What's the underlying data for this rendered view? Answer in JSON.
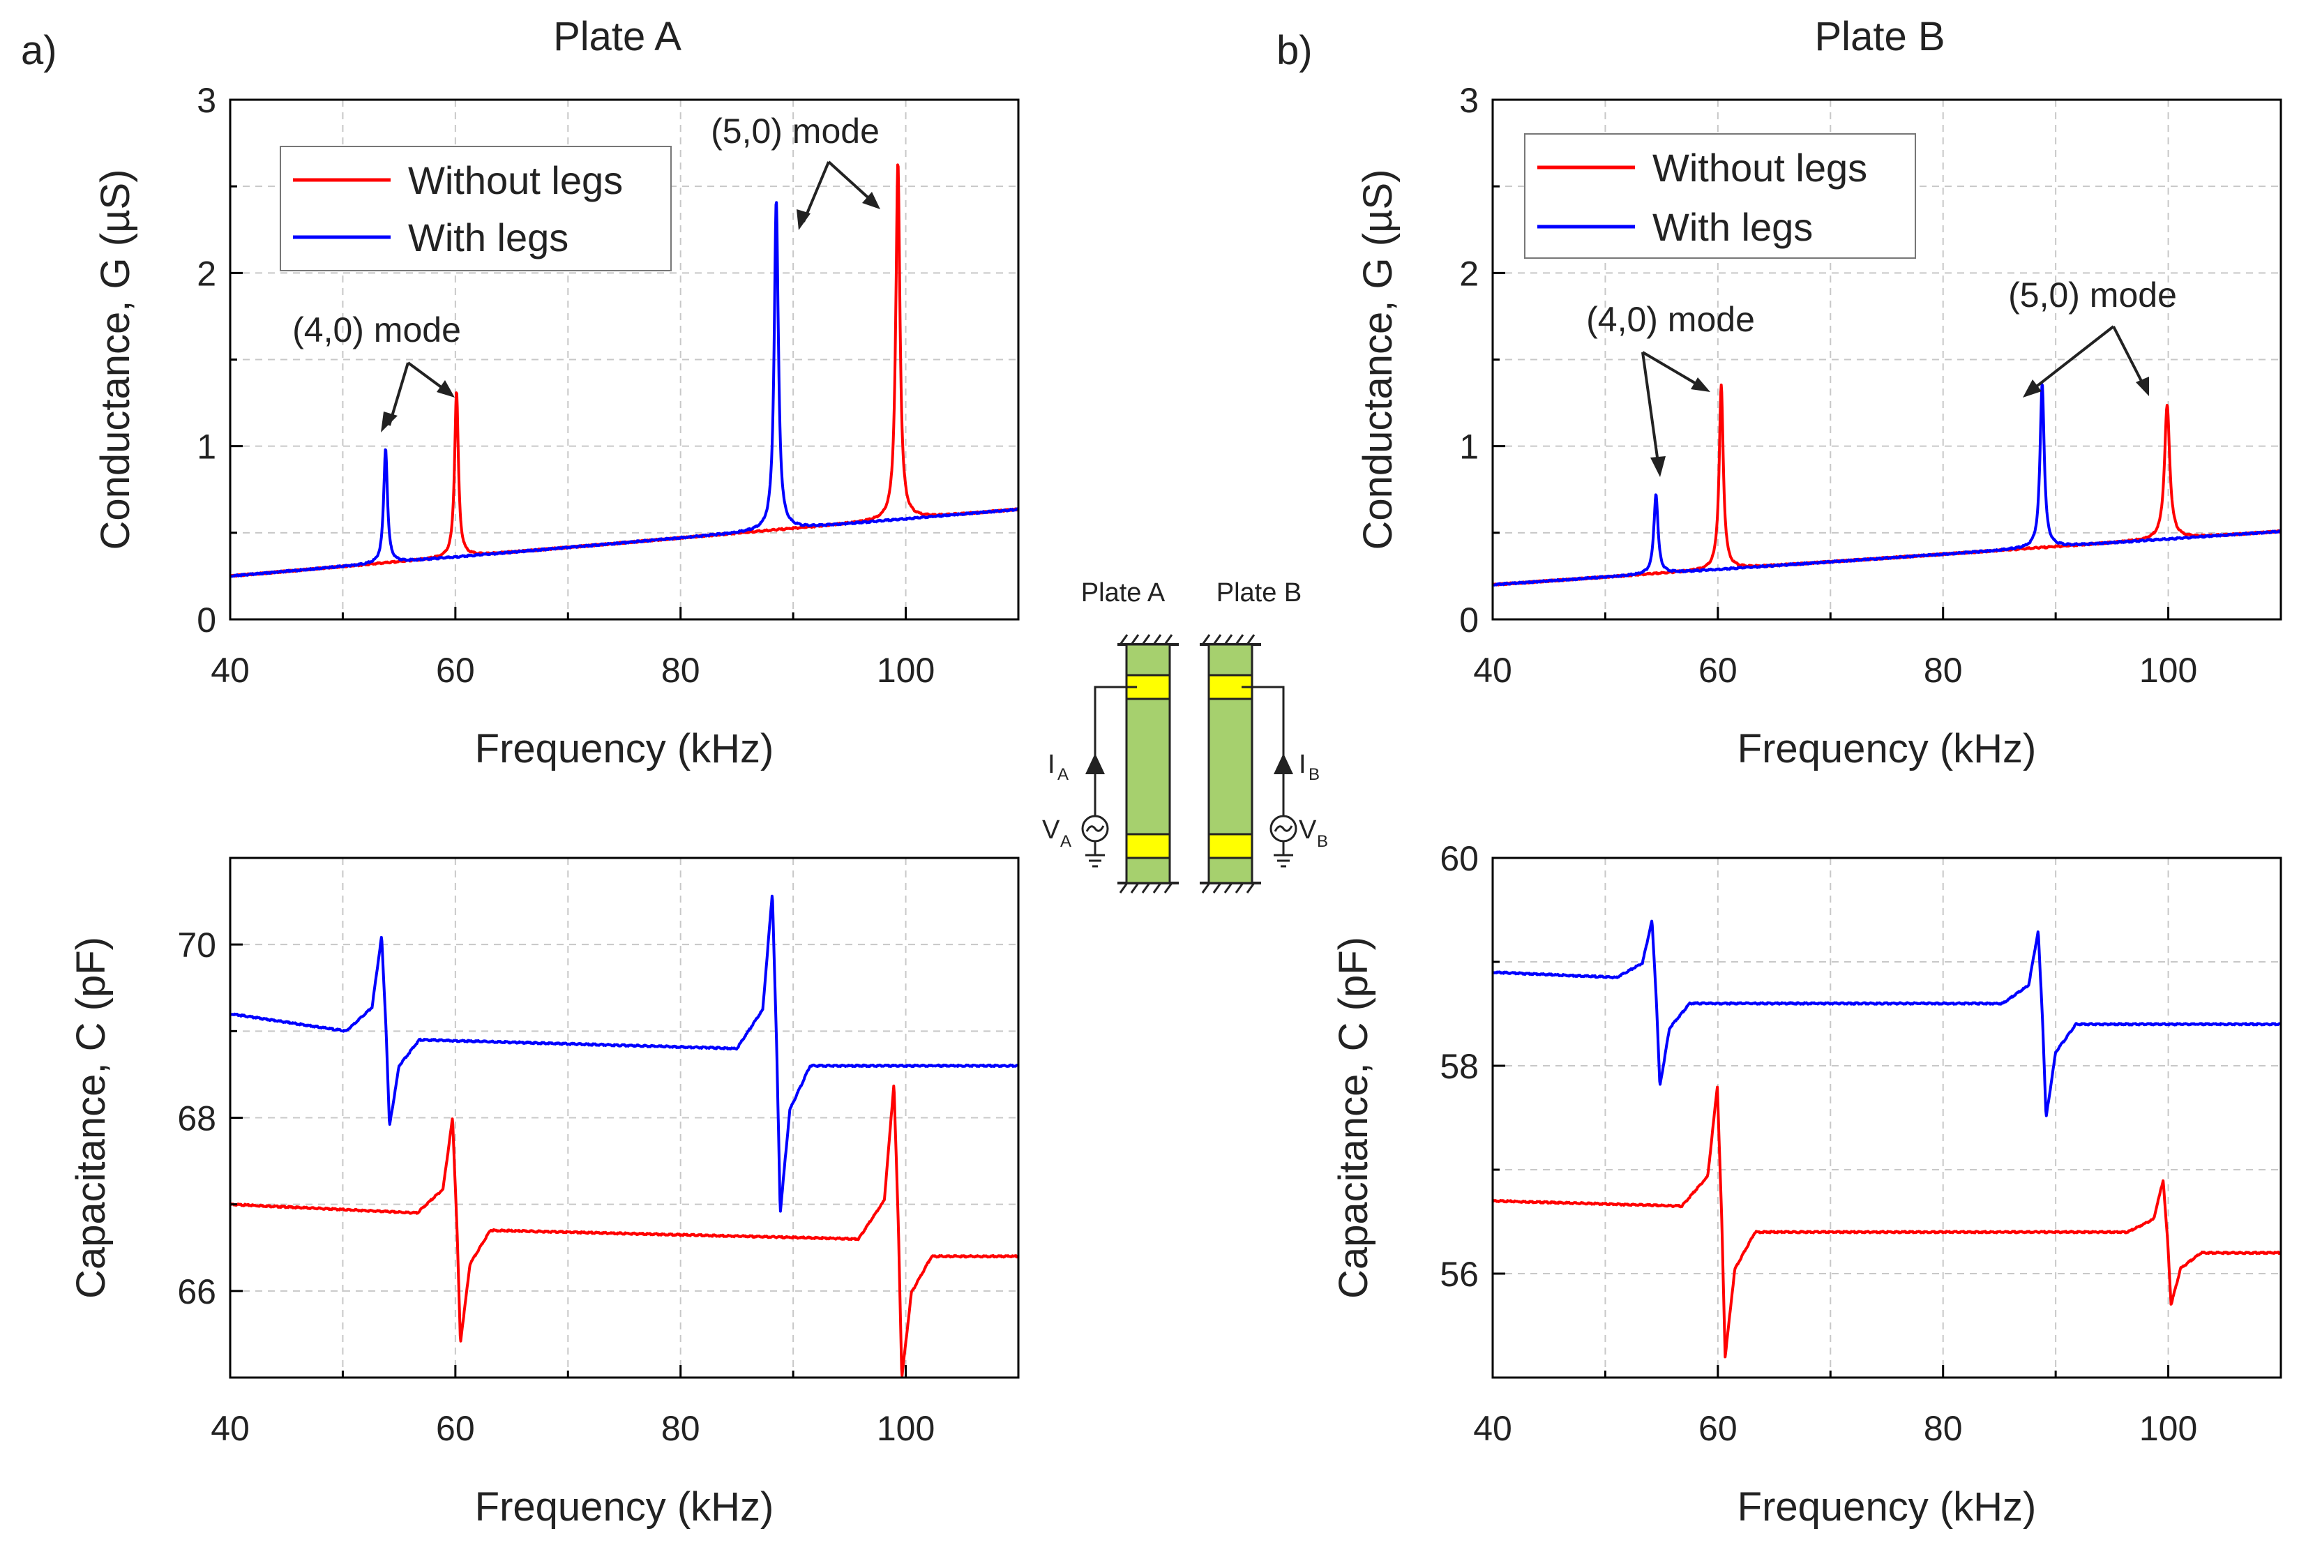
{
  "figure": {
    "panel_a": {
      "label": "a)",
      "title": "Plate A"
    },
    "panel_b": {
      "label": "b)",
      "title": "Plate B"
    }
  },
  "schematic": {
    "label_a": "Plate A",
    "label_b": "Plate B",
    "current_a": "I",
    "current_a_sub": "A",
    "voltage_a": "V",
    "voltage_a_sub": "A",
    "current_b": "I",
    "current_b_sub": "B",
    "voltage_b": "V",
    "voltage_b_sub": "B"
  },
  "chart_data": [
    {
      "id": "a_top",
      "type": "line",
      "xlabel": "Frequency (kHz)",
      "ylabel": "Conductance, G (µS)",
      "xlim": [
        40,
        110
      ],
      "ylim": [
        0,
        3
      ],
      "xticks": [
        40,
        60,
        80,
        100
      ],
      "yticks": [
        0,
        1,
        2,
        3
      ],
      "legend": [
        "Without legs",
        "With legs"
      ],
      "annotations": [
        "(4,0) mode",
        "(5,0) mode"
      ],
      "series": [
        {
          "name": "Without legs",
          "color": "#ff0000",
          "base": [
            0.25,
            0.0055
          ],
          "peaks": [
            [
              60.1,
              0.96,
              0.2
            ],
            [
              99.3,
              2.06,
              0.22
            ]
          ]
        },
        {
          "name": "With legs",
          "color": "#0000ff",
          "base": [
            0.25,
            0.0055
          ],
          "peaks": [
            [
              53.8,
              0.66,
              0.2
            ],
            [
              88.5,
              1.9,
              0.22
            ]
          ]
        }
      ]
    },
    {
      "id": "a_bot",
      "type": "line",
      "xlabel": "Frequency (kHz)",
      "ylabel": "Capacitance, C (pF)",
      "xlim": [
        40,
        110
      ],
      "ylim": [
        65,
        71
      ],
      "xticks": [
        40,
        60,
        80,
        100
      ],
      "yticks": [
        66,
        68,
        70
      ],
      "series": [
        {
          "name": "Without legs",
          "color": "#ff0000",
          "flat": [
            67.0,
            66.6,
            66.4
          ],
          "res": [
            [
              60.1,
              66.9,
              68.0,
              65.4,
              66.7
            ],
            [
              99.3,
              66.6,
              68.4,
              65.0,
              66.4
            ]
          ]
        },
        {
          "name": "With legs",
          "color": "#0000ff",
          "flat": [
            69.2,
            68.8,
            68.6
          ],
          "res": [
            [
              53.8,
              69.0,
              70.1,
              67.9,
              68.9
            ],
            [
              88.5,
              68.8,
              70.6,
              66.9,
              68.6
            ]
          ]
        }
      ]
    },
    {
      "id": "b_top",
      "type": "line",
      "xlabel": "Frequency (kHz)",
      "ylabel": "Conductance, G (µS)",
      "xlim": [
        40,
        110
      ],
      "ylim": [
        0,
        3
      ],
      "xticks": [
        40,
        60,
        80,
        100
      ],
      "yticks": [
        0,
        1,
        2,
        3
      ],
      "legend": [
        "Without legs",
        "With legs"
      ],
      "annotations": [
        "(4,0) mode",
        "(5,0) mode"
      ],
      "series": [
        {
          "name": "Without legs",
          "color": "#ff0000",
          "base": [
            0.2,
            0.0044
          ],
          "peaks": [
            [
              60.3,
              1.06,
              0.22
            ],
            [
              99.9,
              0.77,
              0.28
            ]
          ]
        },
        {
          "name": "With legs",
          "color": "#0000ff",
          "base": [
            0.2,
            0.0044
          ],
          "peaks": [
            [
              54.5,
              0.46,
              0.22
            ],
            [
              88.8,
              0.95,
              0.22
            ]
          ]
        }
      ]
    },
    {
      "id": "b_bot",
      "type": "line",
      "xlabel": "Frequency (kHz)",
      "ylabel": "Capacitance, C (pF)",
      "xlim": [
        40,
        110
      ],
      "ylim": [
        55,
        60
      ],
      "xticks": [
        40,
        60,
        80,
        100
      ],
      "yticks": [
        56,
        58,
        60
      ],
      "series": [
        {
          "name": "Without legs",
          "color": "#ff0000",
          "flat": [
            56.7,
            56.4,
            56.2
          ],
          "res": [
            [
              60.3,
              56.65,
              57.8,
              55.2,
              56.4
            ],
            [
              99.9,
              56.4,
              56.9,
              55.7,
              56.2
            ]
          ]
        },
        {
          "name": "With legs",
          "color": "#0000ff",
          "flat": [
            58.9,
            58.6,
            58.4
          ],
          "res": [
            [
              54.5,
              58.85,
              59.4,
              57.8,
              58.6
            ],
            [
              88.8,
              58.6,
              59.3,
              57.5,
              58.4
            ]
          ]
        }
      ]
    }
  ]
}
